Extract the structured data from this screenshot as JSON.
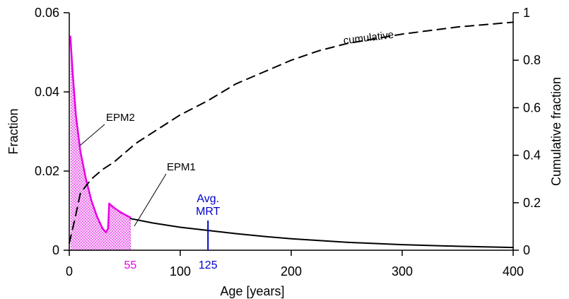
{
  "chart_data": {
    "type": "line",
    "xlabel": "Age [years]",
    "ylabel": "Fraction",
    "y2label": "Cumulative fraction",
    "xlim": [
      0,
      400
    ],
    "ylim": [
      0,
      0.06
    ],
    "y2lim": [
      0,
      1
    ],
    "x_ticks": [
      0,
      100,
      200,
      300,
      400
    ],
    "x_tick_labels": [
      "0",
      "100",
      "200",
      "300",
      "400"
    ],
    "y_ticks": [
      0,
      0.02,
      0.04,
      0.06
    ],
    "y_tick_labels": [
      "0",
      "0.02",
      "0.04",
      "0.06"
    ],
    "y2_ticks": [
      0,
      0.2,
      0.4,
      0.6,
      0.8,
      1
    ],
    "y2_tick_labels": [
      "0",
      "0.2",
      "0.4",
      "0.6",
      "0.8",
      "1"
    ],
    "grid": false,
    "series": [
      {
        "name": "EPM1",
        "axis": "left",
        "style": "solid",
        "color": "#000000",
        "x": [
          55,
          75,
          100,
          125,
          150,
          175,
          200,
          250,
          300,
          350,
          400
        ],
        "y": [
          0.008,
          0.0069,
          0.0058,
          0.005,
          0.0042,
          0.0035,
          0.0029,
          0.002,
          0.0014,
          0.001,
          0.0007
        ]
      },
      {
        "name": "EPM2",
        "axis": "left",
        "style": "solid",
        "color": "#e600e6",
        "x": [
          1,
          3,
          6,
          10,
          15,
          20,
          25,
          30,
          33,
          35,
          36,
          40,
          45,
          50,
          55
        ],
        "y": [
          0.054,
          0.045,
          0.034,
          0.025,
          0.018,
          0.0125,
          0.0085,
          0.0055,
          0.0045,
          0.0055,
          0.0118,
          0.0108,
          0.0098,
          0.009,
          0.0083
        ]
      },
      {
        "name": "cumulative",
        "axis": "right",
        "style": "dashed",
        "color": "#000000",
        "x": [
          0,
          5,
          10,
          15,
          20,
          30,
          40,
          60,
          80,
          100,
          125,
          150,
          175,
          200,
          225,
          250,
          300,
          350,
          400
        ],
        "y": [
          0.03,
          0.13,
          0.24,
          0.27,
          0.3,
          0.34,
          0.37,
          0.45,
          0.51,
          0.57,
          0.63,
          0.7,
          0.75,
          0.8,
          0.84,
          0.87,
          0.91,
          0.94,
          0.96
        ]
      }
    ],
    "shaded_region": {
      "x_from": 0,
      "x_to": 55,
      "color": "#e600e6"
    },
    "markers": [
      {
        "x": 55,
        "label": "55",
        "color": "#e600e6"
      },
      {
        "x": 125,
        "label": "125",
        "color": "#0000cc",
        "line_to_y": 0.0075,
        "caption_lines": [
          "Avg.",
          "MRT"
        ]
      }
    ],
    "annotations": [
      "EPM2",
      "EPM1",
      "cumulative"
    ]
  }
}
